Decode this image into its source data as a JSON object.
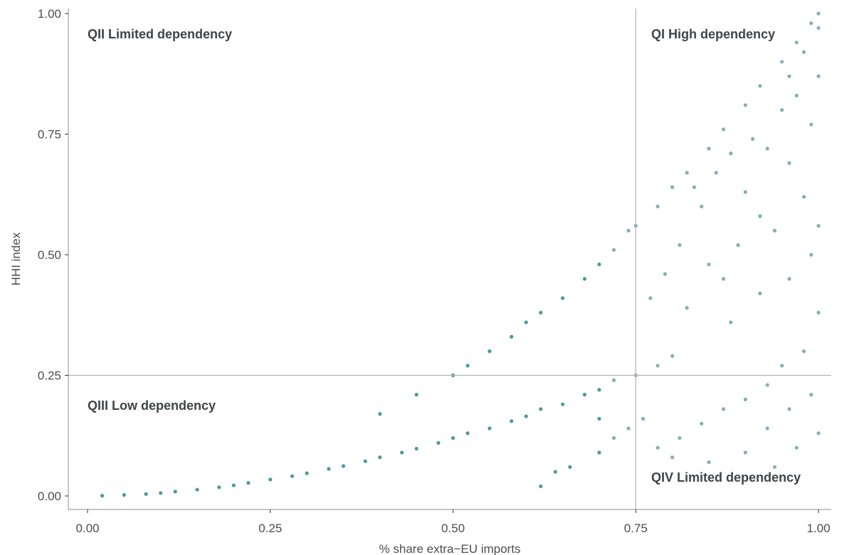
{
  "chart_data": {
    "type": "scatter",
    "title": "",
    "xlabel": "% share extra−EU imports",
    "ylabel": "HHI index",
    "xlim": [
      0,
      1
    ],
    "ylim": [
      0,
      1
    ],
    "x_ticks": [
      "0.00",
      "0.25",
      "0.50",
      "0.75",
      "1.00"
    ],
    "y_ticks": [
      "0.00",
      "0.25",
      "0.50",
      "0.75",
      "1.00"
    ],
    "thresholds": {
      "x": 0.75,
      "y": 0.25
    },
    "quadrant_labels": {
      "q1": "QI High dependency",
      "q2": "QII Limited dependency",
      "q3": "QIII Low dependency",
      "q4": "QIV Limited dependency"
    },
    "grid": false,
    "legend": "none",
    "colors": {
      "points": "#1b7f84",
      "points_light": "#5f9ea0"
    },
    "series": [
      {
        "points": [
          [
            0.02,
            0.0005
          ],
          [
            0.05,
            0.002
          ],
          [
            0.08,
            0.004
          ],
          [
            0.1,
            0.006
          ],
          [
            0.12,
            0.009
          ],
          [
            0.15,
            0.013
          ],
          [
            0.18,
            0.018
          ],
          [
            0.2,
            0.022
          ],
          [
            0.22,
            0.027
          ],
          [
            0.25,
            0.034
          ],
          [
            0.28,
            0.041
          ],
          [
            0.3,
            0.047
          ],
          [
            0.33,
            0.056
          ],
          [
            0.35,
            0.062
          ],
          [
            0.38,
            0.072
          ],
          [
            0.4,
            0.08
          ],
          [
            0.43,
            0.09
          ],
          [
            0.45,
            0.098
          ],
          [
            0.48,
            0.11
          ],
          [
            0.5,
            0.12
          ],
          [
            0.52,
            0.13
          ],
          [
            0.55,
            0.14
          ],
          [
            0.58,
            0.155
          ],
          [
            0.6,
            0.165
          ],
          [
            0.62,
            0.18
          ],
          [
            0.65,
            0.19
          ],
          [
            0.68,
            0.21
          ],
          [
            0.7,
            0.22
          ],
          [
            0.72,
            0.24
          ],
          [
            0.75,
            0.25
          ],
          [
            0.78,
            0.27
          ],
          [
            0.8,
            0.29
          ],
          [
            0.4,
            0.17
          ],
          [
            0.45,
            0.21
          ],
          [
            0.5,
            0.25
          ],
          [
            0.52,
            0.27
          ],
          [
            0.55,
            0.3
          ],
          [
            0.58,
            0.33
          ],
          [
            0.6,
            0.36
          ],
          [
            0.62,
            0.38
          ],
          [
            0.65,
            0.41
          ],
          [
            0.68,
            0.45
          ],
          [
            0.7,
            0.48
          ],
          [
            0.72,
            0.51
          ],
          [
            0.74,
            0.55
          ],
          [
            0.75,
            0.56
          ],
          [
            0.78,
            0.6
          ],
          [
            0.8,
            0.64
          ],
          [
            0.82,
            0.67
          ],
          [
            0.85,
            0.72
          ],
          [
            0.87,
            0.76
          ],
          [
            0.9,
            0.81
          ],
          [
            0.92,
            0.85
          ],
          [
            0.95,
            0.9
          ],
          [
            0.97,
            0.94
          ],
          [
            0.99,
            0.98
          ],
          [
            1.0,
            1.0
          ],
          [
            0.98,
            0.92
          ],
          [
            1.0,
            0.97
          ],
          [
            0.96,
            0.87
          ],
          [
            1.0,
            0.87
          ],
          [
            0.99,
            0.77
          ],
          [
            0.97,
            0.83
          ],
          [
            0.95,
            0.8
          ],
          [
            0.93,
            0.72
          ],
          [
            0.91,
            0.74
          ],
          [
            0.88,
            0.71
          ],
          [
            0.86,
            0.67
          ],
          [
            0.84,
            0.6
          ],
          [
            0.83,
            0.64
          ],
          [
            0.9,
            0.63
          ],
          [
            0.92,
            0.58
          ],
          [
            0.96,
            0.69
          ],
          [
            0.98,
            0.62
          ],
          [
            1.0,
            0.56
          ],
          [
            0.99,
            0.5
          ],
          [
            0.94,
            0.55
          ],
          [
            0.89,
            0.52
          ],
          [
            0.87,
            0.45
          ],
          [
            0.85,
            0.48
          ],
          [
            0.81,
            0.52
          ],
          [
            0.79,
            0.46
          ],
          [
            0.77,
            0.41
          ],
          [
            0.82,
            0.39
          ],
          [
            0.88,
            0.36
          ],
          [
            0.92,
            0.42
          ],
          [
            0.96,
            0.45
          ],
          [
            1.0,
            0.38
          ],
          [
            0.98,
            0.3
          ],
          [
            0.95,
            0.27
          ],
          [
            0.93,
            0.23
          ],
          [
            0.9,
            0.2
          ],
          [
            0.87,
            0.18
          ],
          [
            0.84,
            0.15
          ],
          [
            0.81,
            0.12
          ],
          [
            0.78,
            0.1
          ],
          [
            0.8,
            0.08
          ],
          [
            0.85,
            0.07
          ],
          [
            0.9,
            0.09
          ],
          [
            0.93,
            0.14
          ],
          [
            0.96,
            0.18
          ],
          [
            0.99,
            0.21
          ],
          [
            1.0,
            0.13
          ],
          [
            0.97,
            0.1
          ],
          [
            0.94,
            0.06
          ],
          [
            0.62,
            0.02
          ],
          [
            0.64,
            0.05
          ],
          [
            0.66,
            0.06
          ],
          [
            0.7,
            0.09
          ],
          [
            0.72,
            0.12
          ],
          [
            0.74,
            0.14
          ],
          [
            0.76,
            0.16
          ],
          [
            0.7,
            0.16
          ]
        ]
      }
    ]
  }
}
